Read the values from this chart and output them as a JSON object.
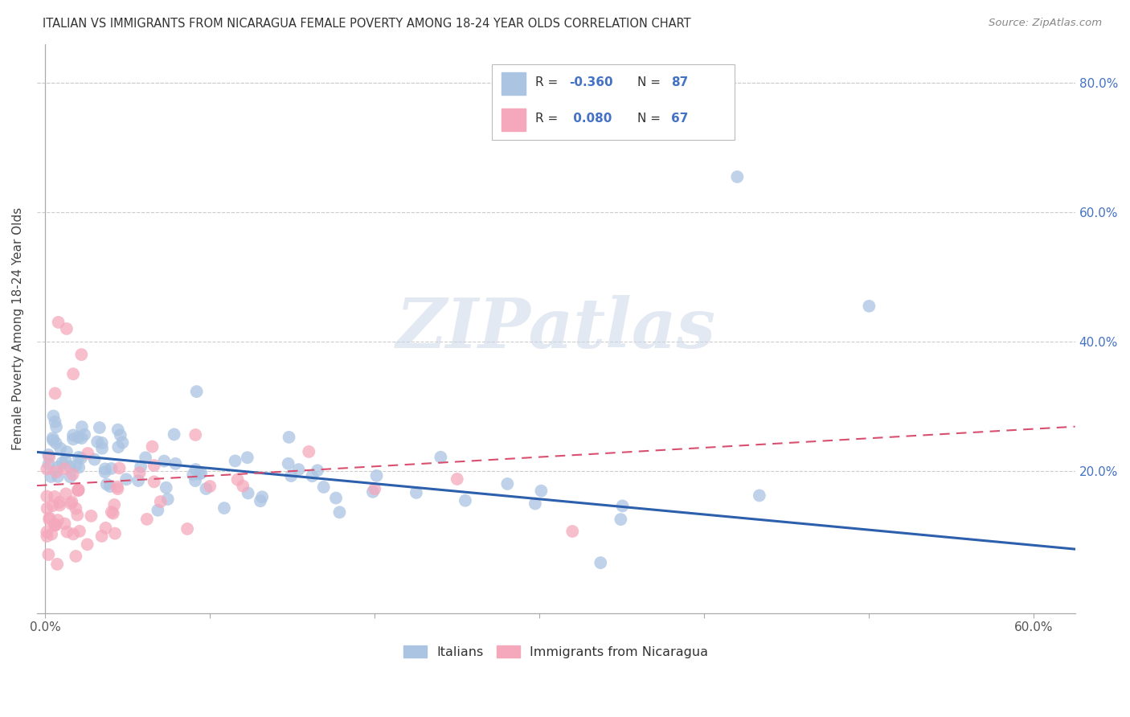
{
  "title": "ITALIAN VS IMMIGRANTS FROM NICARAGUA FEMALE POVERTY AMONG 18-24 YEAR OLDS CORRELATION CHART",
  "source": "Source: ZipAtlas.com",
  "ylabel": "Female Poverty Among 18-24 Year Olds",
  "xlim": [
    -0.005,
    0.625
  ],
  "ylim": [
    -0.02,
    0.86
  ],
  "xtick_vals": [
    0.0,
    0.1,
    0.2,
    0.3,
    0.4,
    0.5,
    0.6
  ],
  "xticklabels": [
    "0.0%",
    "",
    "",
    "",
    "",
    "",
    "60.0%"
  ],
  "ytick_vals": [
    0.0,
    0.2,
    0.4,
    0.6,
    0.8
  ],
  "yticklabels_right": [
    "",
    "20.0%",
    "40.0%",
    "60.0%",
    "80.0%"
  ],
  "legend_R_blue": "-0.360",
  "legend_N_blue": "87",
  "legend_R_pink": "0.080",
  "legend_N_pink": "67",
  "blue_color": "#aac4e2",
  "pink_color": "#f5a8bc",
  "blue_line_color": "#2c5fac",
  "pink_line_color": "#d94f70",
  "watermark_color": "#ccd8e8",
  "grid_color": "#cccccc",
  "right_tick_color": "#4472c4",
  "title_color": "#333333",
  "source_color": "#888888",
  "ylabel_color": "#444444"
}
